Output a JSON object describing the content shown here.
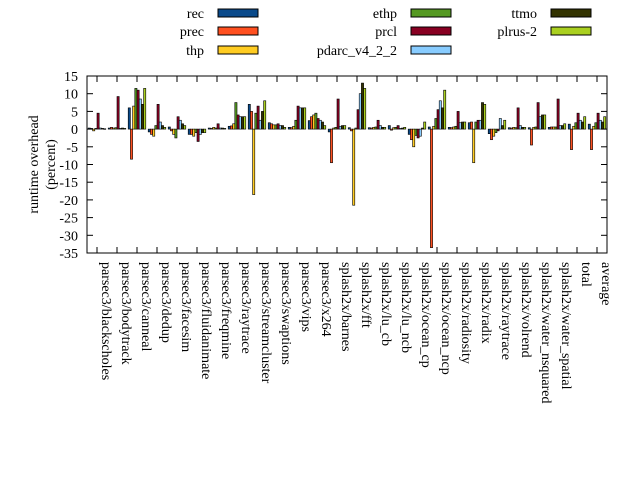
{
  "chart_data": {
    "type": "bar",
    "ylabel": "runtime overhead\n(percent)",
    "xlabel": "",
    "title": "",
    "ylim": [
      -35,
      15
    ],
    "yticks": [
      15,
      10,
      5,
      0,
      -5,
      -10,
      -15,
      -20,
      -25,
      -30,
      -35
    ],
    "grid": false,
    "legend_position": "top",
    "categories": [
      "parsec3/blackscholes",
      "parsec3/bodytrack",
      "parsec3/canneal",
      "parsec3/dedup",
      "parsec3/facesim",
      "parsec3/fluidanimate",
      "parsec3/freqmine",
      "parsec3/raytrace",
      "parsec3/streamcluster",
      "parsec3/swaptions",
      "parsec3/vips",
      "parsec3/x264",
      "splash2x/barnes",
      "splash2x/fft",
      "splash2x/lu_cb",
      "splash2x/lu_ncb",
      "splash2x/ocean_cp",
      "splash2x/ocean_ncp",
      "splash2x/radiosity",
      "splash2x/radix",
      "splash2x/raytrace",
      "splash2x/volrend",
      "splash2x/water_nsquared",
      "splash2x/water_spatial",
      "total",
      "average"
    ],
    "series": [
      {
        "name": "rec",
        "color": "#0a4a8a",
        "values": [
          0.3,
          0.3,
          6.0,
          -0.8,
          0.6,
          -1.5,
          0.3,
          0.8,
          7.0,
          1.8,
          0.5,
          2.4,
          -0.8,
          0.4,
          0.4,
          1.0,
          -1.5,
          0.6,
          0.5,
          1.8,
          -1.3,
          0.4,
          0.4,
          0.5,
          1.4,
          1.4
        ]
      },
      {
        "name": "prec",
        "color": "#ff5020",
        "values": [
          0.2,
          0.5,
          -8.5,
          -1.5,
          -0.5,
          -1.5,
          0.2,
          0.9,
          5.0,
          1.5,
          0.4,
          3.5,
          -9.5,
          -0.5,
          0.3,
          -0.3,
          -3.0,
          -33.5,
          0.4,
          2.0,
          -3.0,
          0.3,
          -4.5,
          0.6,
          -5.8,
          -5.8
        ]
      },
      {
        "name": "thp",
        "color": "#ffcc22",
        "values": [
          -0.5,
          0.3,
          6.5,
          -2.0,
          -1.5,
          -2.0,
          0.5,
          1.5,
          -18.5,
          1.2,
          0.8,
          4.0,
          0.3,
          -21.5,
          0.5,
          0.4,
          -5.0,
          0.8,
          0.6,
          -9.5,
          -2.0,
          0.5,
          0.5,
          0.6,
          0.8,
          0.8
        ]
      },
      {
        "name": "ethp",
        "color": "#559922",
        "values": [
          0.2,
          0.4,
          11.5,
          1.0,
          -2.5,
          -1.0,
          0.3,
          7.5,
          4.5,
          1.2,
          2.5,
          4.5,
          0.5,
          0.3,
          0.6,
          0.5,
          -1.8,
          3.0,
          0.8,
          2.0,
          -1.0,
          0.4,
          0.6,
          0.6,
          1.8,
          1.8
        ]
      },
      {
        "name": "prcl",
        "color": "#880022",
        "values": [
          4.5,
          9.2,
          11.0,
          7.0,
          3.5,
          -3.5,
          1.5,
          4.0,
          6.5,
          1.5,
          6.5,
          3.0,
          8.5,
          5.5,
          2.5,
          1.0,
          -2.5,
          5.5,
          5.0,
          2.5,
          -0.5,
          6.0,
          7.5,
          8.5,
          4.5,
          4.5
        ]
      },
      {
        "name": "pdarc_v4_2_2",
        "color": "#88ccff",
        "values": [
          0.3,
          0.2,
          8.5,
          2.0,
          2.5,
          -1.5,
          0.3,
          3.5,
          2.5,
          1.0,
          6.0,
          2.5,
          0.8,
          10.0,
          1.0,
          0.2,
          -2.0,
          8.0,
          1.8,
          2.5,
          3.0,
          1.0,
          3.5,
          1.0,
          2.5,
          2.5
        ]
      },
      {
        "name": "ttmo",
        "color": "#333300",
        "values": [
          0.2,
          0.3,
          7.0,
          1.0,
          1.5,
          -1.0,
          0.3,
          3.5,
          5.0,
          1.0,
          6.0,
          2.0,
          1.0,
          13.0,
          0.5,
          0.3,
          0.3,
          6.0,
          2.0,
          7.5,
          1.0,
          0.5,
          4.0,
          1.0,
          2.0,
          2.0
        ]
      },
      {
        "name": "plrus-2",
        "color": "#aad020",
        "values": [
          0.1,
          0.2,
          11.5,
          0.5,
          1.0,
          -1.0,
          0.2,
          3.5,
          8.0,
          0.5,
          6.0,
          1.0,
          1.0,
          11.5,
          0.5,
          0.5,
          2.0,
          11.0,
          2.0,
          7.0,
          2.5,
          0.5,
          4.0,
          1.5,
          3.5,
          3.5
        ]
      }
    ]
  }
}
